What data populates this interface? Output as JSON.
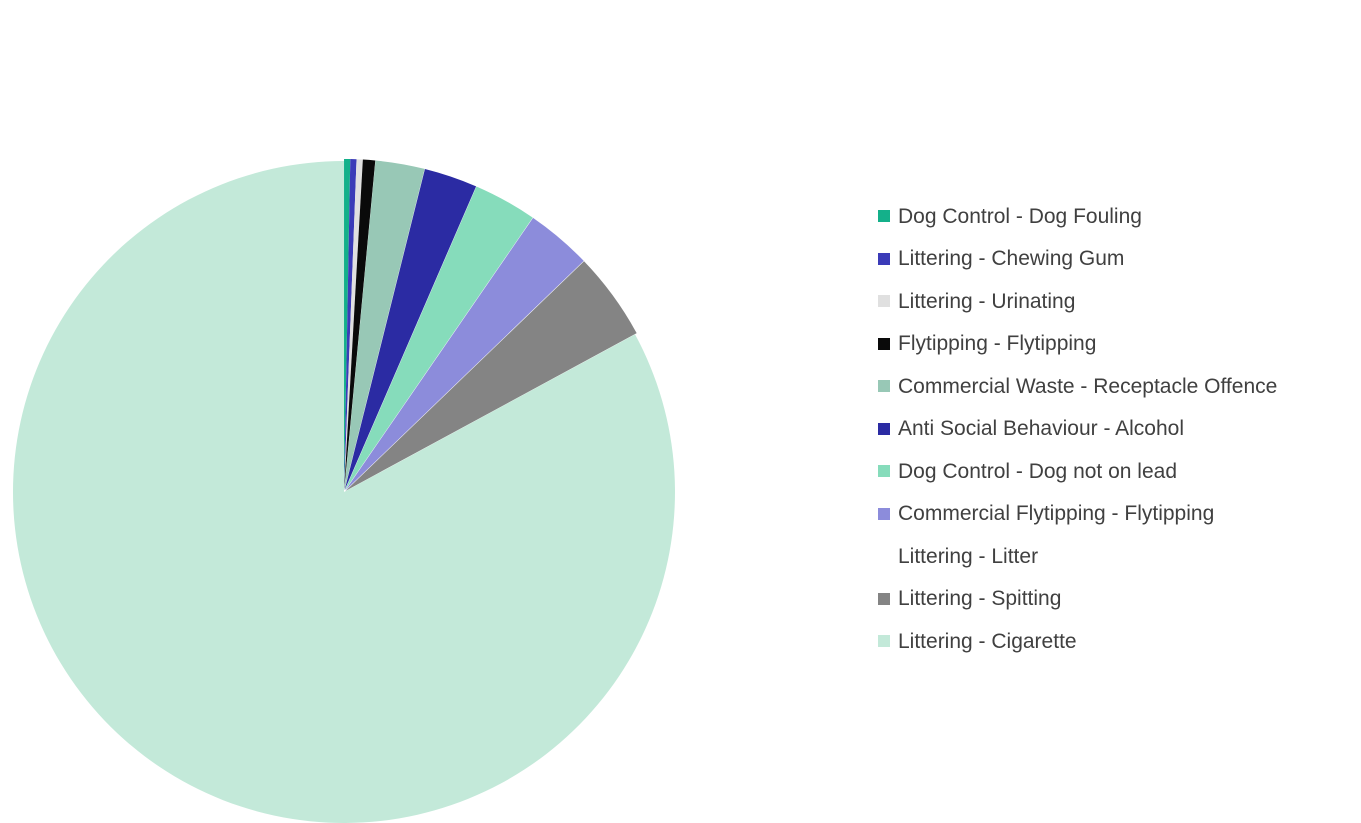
{
  "chart_data": {
    "type": "pie",
    "title": "",
    "exploded": true,
    "start_angle_deg": 0,
    "direction": "clockwise",
    "legend_position": "right",
    "slices": [
      {
        "label": "Dog Control - Dog Fouling",
        "value": 0.3,
        "color": "#14b08a"
      },
      {
        "label": "Littering - Chewing Gum",
        "value": 0.3,
        "color": "#3b3bb8"
      },
      {
        "label": "Littering - Urinating",
        "value": 0.3,
        "color": "#e0e0e0"
      },
      {
        "label": "Flytipping - Flytipping",
        "value": 0.6,
        "color": "#0a0a0a"
      },
      {
        "label": "Commercial Waste - Receptacle Offence",
        "value": 2.4,
        "color": "#98c8b6"
      },
      {
        "label": "Anti Social Behaviour - Alcohol",
        "value": 2.6,
        "color": "#2b2ba3"
      },
      {
        "label": "Dog Control - Dog not on lead",
        "value": 3.1,
        "color": "#86dcbb"
      },
      {
        "label": "Commercial Flytipping - Flytipping",
        "value": 3.2,
        "color": "#8c8cdb"
      },
      {
        "label": "Littering - Litter",
        "value": 0.0,
        "color": "#ffffff"
      },
      {
        "label": "Littering - Spitting",
        "value": 4.3,
        "color": "#848484"
      },
      {
        "label": "Littering - Cigarette",
        "value": 82.9,
        "color": "#c3e9d9"
      }
    ]
  }
}
